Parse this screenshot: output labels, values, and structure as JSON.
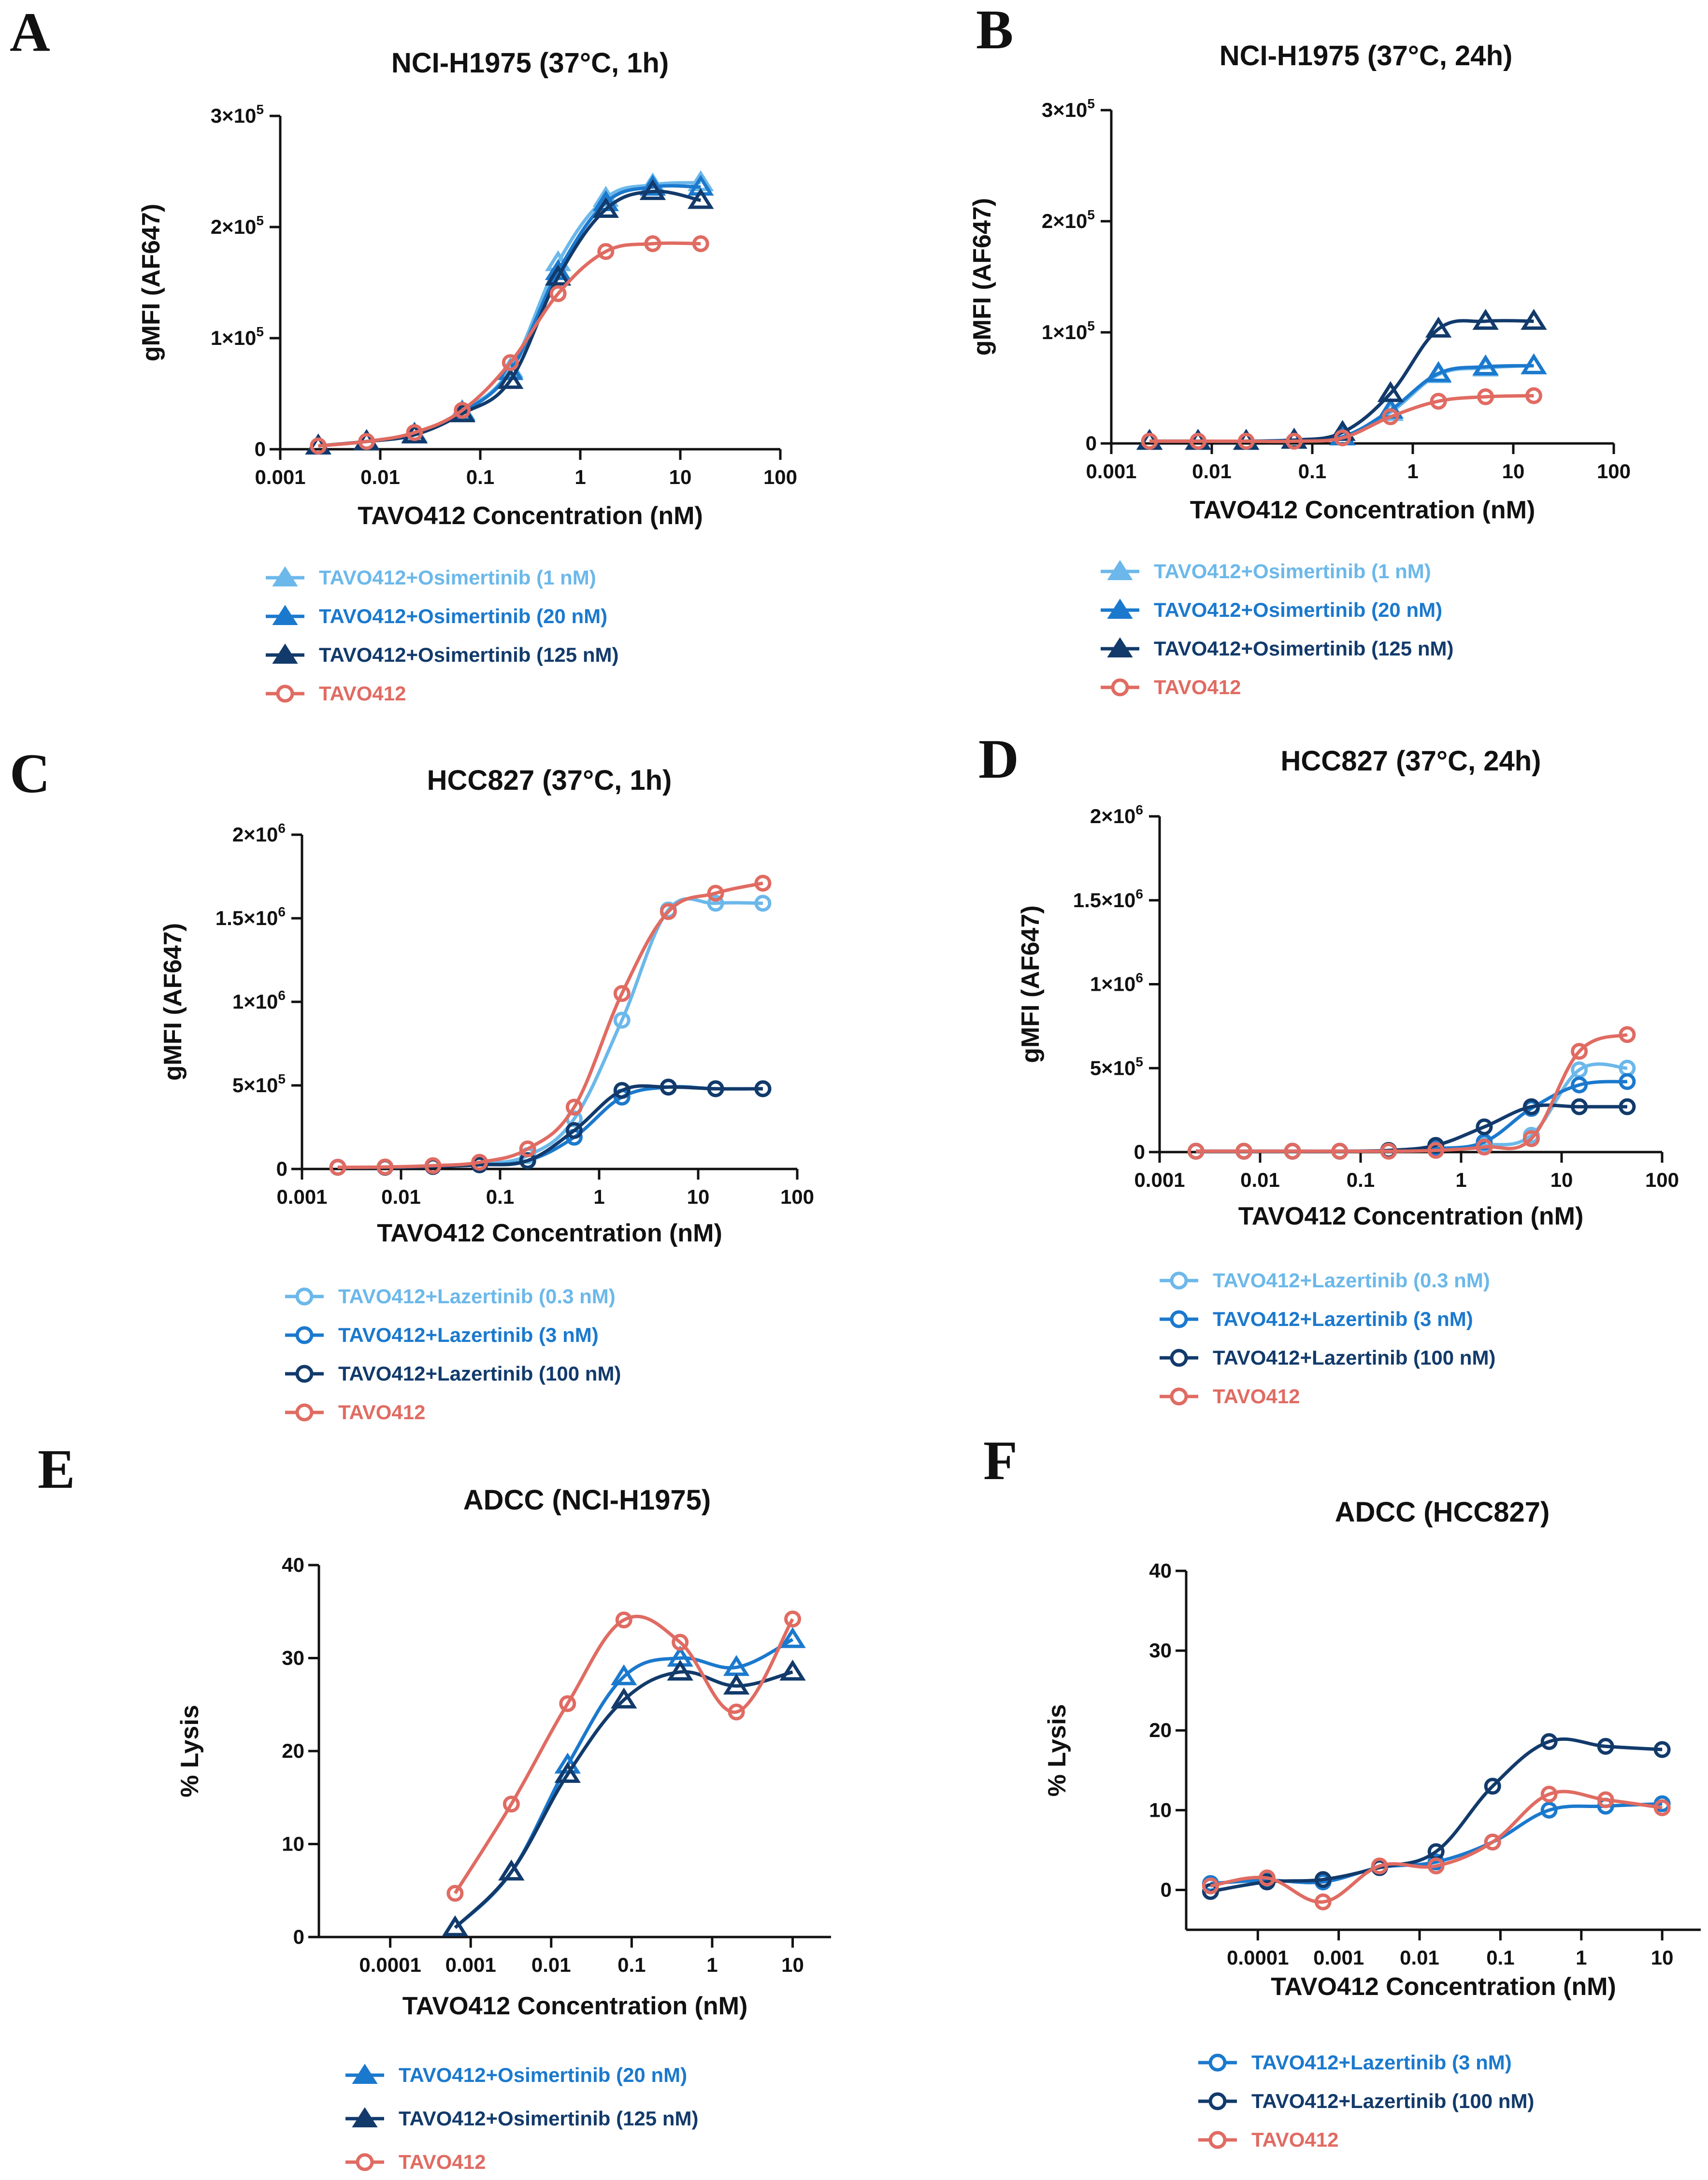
{
  "colors": {
    "light_blue": "#6cb8ea",
    "mid_blue": "#1b79cd",
    "navy": "#123a6b",
    "salmon": "#e06b62",
    "axis": "#111111"
  },
  "chart_data": [
    {
      "panel": "A",
      "type": "scatter",
      "title": "NCI-H1975 (37°C, 1h)",
      "xlabel": "TAVO412 Concentration (nM)",
      "ylabel": "gMFI (AF647)",
      "xscale": "log",
      "xlim": [
        0.001,
        100
      ],
      "ylim": [
        0,
        300000
      ],
      "xticks": [
        0.001,
        0.01,
        0.1,
        1,
        10,
        100
      ],
      "xtick_labels": [
        "0.001",
        "0.01",
        "0.1",
        "1",
        "10",
        "100"
      ],
      "yticks": [
        0,
        100000,
        200000,
        300000
      ],
      "ytick_labels": [
        {
          "m": "0",
          "e": ""
        },
        {
          "m": "1×10",
          "e": "5"
        },
        {
          "m": "2×10",
          "e": "5"
        },
        {
          "m": "3×10",
          "e": "5"
        }
      ],
      "x": [
        0.0024,
        0.0073,
        0.022,
        0.066,
        0.2,
        0.6,
        1.8,
        5.3,
        16
      ],
      "series": [
        {
          "name": "TAVO412+Osimertinib (1 nM)",
          "color": "light_blue",
          "marker": "triangle",
          "values": [
            3000,
            7000,
            14000,
            34000,
            72000,
            168000,
            226000,
            238000,
            240000
          ]
        },
        {
          "name": "TAVO412+Osimertinib (20 nM)",
          "color": "mid_blue",
          "marker": "triangle",
          "values": [
            3000,
            7000,
            13000,
            33000,
            70000,
            160000,
            222000,
            236000,
            236000
          ]
        },
        {
          "name": "TAVO412+Osimertinib (125 nM)",
          "color": "navy",
          "marker": "triangle",
          "values": [
            3000,
            7000,
            13000,
            32000,
            62000,
            155000,
            216000,
            232000,
            224000
          ]
        },
        {
          "name": "TAVO412",
          "color": "salmon",
          "marker": "circle",
          "values": [
            3000,
            7000,
            15000,
            35000,
            78000,
            140000,
            178000,
            185000,
            185000
          ]
        }
      ]
    },
    {
      "panel": "B",
      "type": "scatter",
      "title": "NCI-H1975 (37°C, 24h)",
      "xlabel": "TAVO412 Concentration (nM)",
      "ylabel": "gMFI (AF647)",
      "xscale": "log",
      "xlim": [
        0.001,
        100
      ],
      "ylim": [
        0,
        300000
      ],
      "xticks": [
        0.001,
        0.01,
        0.1,
        1,
        10,
        100
      ],
      "xtick_labels": [
        "0.001",
        "0.01",
        "0.1",
        "1",
        "10",
        "100"
      ],
      "yticks": [
        0,
        100000,
        200000,
        300000
      ],
      "ytick_labels": [
        {
          "m": "0",
          "e": ""
        },
        {
          "m": "1×10",
          "e": "5"
        },
        {
          "m": "2×10",
          "e": "5"
        },
        {
          "m": "3×10",
          "e": "5"
        }
      ],
      "x": [
        0.0024,
        0.0073,
        0.022,
        0.066,
        0.2,
        0.6,
        1.8,
        5.3,
        16
      ],
      "series": [
        {
          "name": "TAVO412+Osimertinib (1 nM)",
          "color": "light_blue",
          "marker": "triangle",
          "values": [
            2000,
            2000,
            2000,
            3000,
            6000,
            28000,
            62000,
            68000,
            70000
          ]
        },
        {
          "name": "TAVO412+Osimertinib (20 nM)",
          "color": "mid_blue",
          "marker": "triangle",
          "values": [
            2000,
            2000,
            2000,
            3000,
            6000,
            30000,
            63000,
            69000,
            70000
          ]
        },
        {
          "name": "TAVO412+Osimertinib (125 nM)",
          "color": "navy",
          "marker": "triangle",
          "values": [
            2000,
            2000,
            2000,
            3000,
            10000,
            45000,
            103000,
            110000,
            110000
          ]
        },
        {
          "name": "TAVO412",
          "color": "salmon",
          "marker": "circle",
          "values": [
            2000,
            2000,
            2000,
            2000,
            5000,
            24000,
            38000,
            42000,
            43000
          ]
        }
      ]
    },
    {
      "panel": "C",
      "type": "scatter",
      "title": "HCC827 (37°C, 1h)",
      "xlabel": "TAVO412 Concentration (nM)",
      "ylabel": "gMFI (AF647)",
      "xscale": "log",
      "xlim": [
        0.001,
        100
      ],
      "ylim": [
        0,
        2000000
      ],
      "xticks": [
        0.001,
        0.01,
        0.1,
        1,
        10,
        100
      ],
      "xtick_labels": [
        "0.001",
        "0.01",
        "0.1",
        "1",
        "10",
        "100"
      ],
      "yticks": [
        0,
        500000,
        1000000,
        1500000,
        2000000
      ],
      "ytick_labels": [
        {
          "m": "0",
          "e": ""
        },
        {
          "m": "5×10",
          "e": "5"
        },
        {
          "m": "1×10",
          "e": "6"
        },
        {
          "m": "1.5×10",
          "e": "6"
        },
        {
          "m": "2×10",
          "e": "6"
        }
      ],
      "x": [
        0.0023,
        0.0069,
        0.021,
        0.062,
        0.19,
        0.56,
        1.7,
        5,
        15,
        45
      ],
      "series": [
        {
          "name": "TAVO412+Lazertinib (0.3 nM)",
          "color": "light_blue",
          "marker": "circle",
          "values": [
            10000,
            10000,
            15000,
            30000,
            80000,
            300000,
            890000,
            1550000,
            1590000,
            1590000
          ]
        },
        {
          "name": "TAVO412+Lazertinib (3 nM)",
          "color": "mid_blue",
          "marker": "circle",
          "values": [
            10000,
            10000,
            15000,
            25000,
            50000,
            190000,
            430000,
            490000,
            480000,
            480000
          ]
        },
        {
          "name": "TAVO412+Lazertinib (100 nM)",
          "color": "navy",
          "marker": "circle",
          "values": [
            10000,
            10000,
            15000,
            25000,
            50000,
            230000,
            470000,
            490000,
            480000,
            480000
          ]
        },
        {
          "name": "TAVO412",
          "color": "salmon",
          "marker": "circle",
          "values": [
            10000,
            12000,
            20000,
            40000,
            120000,
            370000,
            1050000,
            1540000,
            1650000,
            1710000
          ]
        }
      ]
    },
    {
      "panel": "D",
      "type": "scatter",
      "title": "HCC827 (37°C, 24h)",
      "xlabel": "TAVO412 Concentration (nM)",
      "ylabel": "gMFI (AF647)",
      "xscale": "log",
      "xlim": [
        0.001,
        100
      ],
      "ylim": [
        0,
        2000000
      ],
      "xticks": [
        0.001,
        0.01,
        0.1,
        1,
        10,
        100
      ],
      "xtick_labels": [
        "0.001",
        "0.01",
        "0.1",
        "1",
        "10",
        "100"
      ],
      "yticks": [
        0,
        500000,
        1000000,
        1500000,
        2000000
      ],
      "ytick_labels": [
        {
          "m": "0",
          "e": ""
        },
        {
          "m": "5×10",
          "e": "5"
        },
        {
          "m": "1×10",
          "e": "6"
        },
        {
          "m": "1.5×10",
          "e": "6"
        },
        {
          "m": "2×10",
          "e": "6"
        }
      ],
      "x": [
        0.0023,
        0.0069,
        0.021,
        0.062,
        0.19,
        0.56,
        1.7,
        5,
        15,
        45
      ],
      "series": [
        {
          "name": "TAVO412+Lazertinib (0.3 nM)",
          "color": "light_blue",
          "marker": "circle",
          "values": [
            5000,
            5000,
            5000,
            5000,
            8000,
            15000,
            40000,
            100000,
            490000,
            500000
          ]
        },
        {
          "name": "TAVO412+Lazertinib (3 nM)",
          "color": "mid_blue",
          "marker": "circle",
          "values": [
            5000,
            5000,
            5000,
            5000,
            8000,
            20000,
            60000,
            260000,
            400000,
            420000
          ]
        },
        {
          "name": "TAVO412+Lazertinib (100 nM)",
          "color": "navy",
          "marker": "circle",
          "values": [
            5000,
            5000,
            5000,
            5000,
            10000,
            40000,
            150000,
            270000,
            270000,
            270000
          ]
        },
        {
          "name": "TAVO412",
          "color": "salmon",
          "marker": "circle",
          "values": [
            5000,
            5000,
            5000,
            5000,
            5000,
            10000,
            30000,
            80000,
            600000,
            700000
          ]
        }
      ]
    },
    {
      "panel": "E",
      "type": "scatter",
      "title": "ADCC (NCI-H1975)",
      "xlabel": "TAVO412 Concentration (nM)",
      "ylabel": "% Lysis",
      "xscale": "log",
      "xlim": [
        1.3e-05,
        30
      ],
      "ylim": [
        0,
        40
      ],
      "xticks": [
        0.0001,
        0.001,
        0.01,
        0.1,
        1,
        10
      ],
      "xtick_labels": [
        "0.0001",
        "0.001",
        "0.01",
        "0.1",
        "1",
        "10"
      ],
      "yticks": [
        0,
        10,
        20,
        30,
        40
      ],
      "ytick_labels": [
        {
          "m": "0",
          "e": ""
        },
        {
          "m": "10",
          "e": ""
        },
        {
          "m": "20",
          "e": ""
        },
        {
          "m": "30",
          "e": ""
        },
        {
          "m": "40",
          "e": ""
        }
      ],
      "x": [
        0.00064,
        0.0032,
        0.016,
        0.08,
        0.4,
        2,
        10
      ],
      "series": [
        {
          "name": "TAVO412+Osimertinib (20 nM)",
          "color": "mid_blue",
          "marker": "triangle",
          "values": [
            1,
            7,
            18.5,
            28,
            30,
            29,
            32
          ]
        },
        {
          "name": "TAVO412+Osimertinib (125 nM)",
          "color": "navy",
          "marker": "triangle",
          "values": [
            1,
            7,
            17.5,
            25.5,
            28.5,
            27,
            28.5
          ]
        },
        {
          "name": "TAVO412",
          "color": "salmon",
          "marker": "circle",
          "values": [
            4.7,
            14.3,
            25.1,
            34.1,
            31.7,
            24.2,
            34.2
          ]
        }
      ]
    },
    {
      "panel": "F",
      "type": "scatter",
      "title": "ADCC (HCC827)",
      "xlabel": "TAVO412 Concentration (nM)",
      "ylabel": "% Lysis",
      "xscale": "log",
      "xlim": [
        1.3e-05,
        30
      ],
      "ylim": [
        -5,
        40
      ],
      "xticks": [
        0.0001,
        0.001,
        0.01,
        0.1,
        1,
        10
      ],
      "xtick_labels": [
        "0.0001",
        "0.001",
        "0.01",
        "0.1",
        "1",
        "10"
      ],
      "yticks": [
        0,
        10,
        20,
        30,
        40
      ],
      "ytick_labels": [
        {
          "m": "0",
          "e": ""
        },
        {
          "m": "10",
          "e": ""
        },
        {
          "m": "20",
          "e": ""
        },
        {
          "m": "30",
          "e": ""
        },
        {
          "m": "40",
          "e": ""
        }
      ],
      "x": [
        2.6e-05,
        0.00013,
        0.00064,
        0.0032,
        0.016,
        0.08,
        0.4,
        2,
        10
      ],
      "series": [
        {
          "name": "TAVO412+Lazertinib (3 nM)",
          "color": "mid_blue",
          "marker": "circle",
          "values": [
            0.8,
            1.2,
            1,
            2.8,
            3.5,
            6,
            10,
            10.5,
            10.8
          ]
        },
        {
          "name": "TAVO412+Lazertinib (100 nM)",
          "color": "navy",
          "marker": "circle",
          "values": [
            -0.2,
            1,
            1.3,
            2.8,
            4.8,
            13,
            18.6,
            18,
            17.6
          ]
        },
        {
          "name": "TAVO412",
          "color": "salmon",
          "marker": "circle",
          "values": [
            0.5,
            1.5,
            -1.5,
            3,
            3,
            6,
            12,
            11.3,
            10.3
          ]
        }
      ]
    }
  ]
}
